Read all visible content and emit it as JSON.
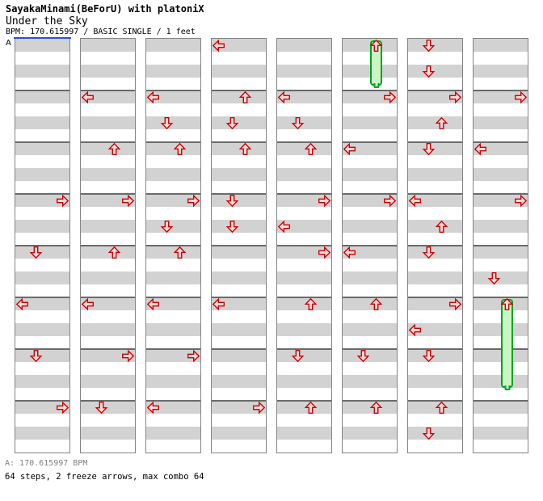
{
  "header": {
    "artist_line": "SayakaMinami(BeForU) with platoniX",
    "song_title": "Under the Sky",
    "chart_info": "BPM: 170.615997 / BASIC SINGLE / 1 feet"
  },
  "footer": {
    "bpm_line": "A: 170.615997 BPM",
    "stats_line": "64 steps, 2 freeze arrows, max combo 64"
  },
  "colors": {
    "arrow_border": "#cc0000",
    "arrow_fill": "#fadada",
    "freeze_fill": "#ccf5c4",
    "freeze_border": "#00a321",
    "band_gray": "#d2d2d2",
    "column_border": "#848484",
    "measure_line": "#6b6b6b",
    "section_line_blue": "#2a52d8",
    "footer_gray": "#808080"
  },
  "chart_data": {
    "type": "ddr-step-chart",
    "section_marker": "A",
    "columns": 8,
    "measures_per_column": 8,
    "beats_per_measure": 4,
    "lanes": [
      "left",
      "down",
      "up",
      "right"
    ],
    "total_steps": 64,
    "freeze_arrows": 2,
    "notes": [
      {
        "column": 1,
        "beat": 12,
        "dir": "right"
      },
      {
        "column": 1,
        "beat": 16,
        "dir": "down"
      },
      {
        "column": 1,
        "beat": 20,
        "dir": "left"
      },
      {
        "column": 1,
        "beat": 24,
        "dir": "down"
      },
      {
        "column": 1,
        "beat": 28,
        "dir": "right"
      },
      {
        "column": 2,
        "beat": 4,
        "dir": "left"
      },
      {
        "column": 2,
        "beat": 8,
        "dir": "up"
      },
      {
        "column": 2,
        "beat": 12,
        "dir": "right"
      },
      {
        "column": 2,
        "beat": 16,
        "dir": "up"
      },
      {
        "column": 2,
        "beat": 20,
        "dir": "left"
      },
      {
        "column": 2,
        "beat": 24,
        "dir": "right"
      },
      {
        "column": 2,
        "beat": 28,
        "dir": "down"
      },
      {
        "column": 3,
        "beat": 4,
        "dir": "left"
      },
      {
        "column": 3,
        "beat": 6,
        "dir": "down"
      },
      {
        "column": 3,
        "beat": 8,
        "dir": "up"
      },
      {
        "column": 3,
        "beat": 12,
        "dir": "right"
      },
      {
        "column": 3,
        "beat": 14,
        "dir": "down"
      },
      {
        "column": 3,
        "beat": 16,
        "dir": "up"
      },
      {
        "column": 3,
        "beat": 20,
        "dir": "left"
      },
      {
        "column": 3,
        "beat": 24,
        "dir": "right"
      },
      {
        "column": 3,
        "beat": 28,
        "dir": "left"
      },
      {
        "column": 4,
        "beat": 0,
        "dir": "left"
      },
      {
        "column": 4,
        "beat": 4,
        "dir": "up"
      },
      {
        "column": 4,
        "beat": 6,
        "dir": "down"
      },
      {
        "column": 4,
        "beat": 8,
        "dir": "up"
      },
      {
        "column": 4,
        "beat": 12,
        "dir": "down"
      },
      {
        "column": 4,
        "beat": 14,
        "dir": "down"
      },
      {
        "column": 4,
        "beat": 20,
        "dir": "left"
      },
      {
        "column": 4,
        "beat": 28,
        "dir": "right"
      },
      {
        "column": 5,
        "beat": 4,
        "dir": "left"
      },
      {
        "column": 5,
        "beat": 6,
        "dir": "down"
      },
      {
        "column": 5,
        "beat": 8,
        "dir": "up"
      },
      {
        "column": 5,
        "beat": 12,
        "dir": "right"
      },
      {
        "column": 5,
        "beat": 14,
        "dir": "left"
      },
      {
        "column": 5,
        "beat": 16,
        "dir": "right"
      },
      {
        "column": 5,
        "beat": 20,
        "dir": "up"
      },
      {
        "column": 5,
        "beat": 24,
        "dir": "down"
      },
      {
        "column": 5,
        "beat": 28,
        "dir": "up"
      },
      {
        "column": 6,
        "beat": 0,
        "dir": "up",
        "hold_until_beat": 3.75
      },
      {
        "column": 6,
        "beat": 4,
        "dir": "right"
      },
      {
        "column": 6,
        "beat": 8,
        "dir": "left"
      },
      {
        "column": 6,
        "beat": 12,
        "dir": "right"
      },
      {
        "column": 6,
        "beat": 16,
        "dir": "left"
      },
      {
        "column": 6,
        "beat": 20,
        "dir": "up"
      },
      {
        "column": 6,
        "beat": 24,
        "dir": "down"
      },
      {
        "column": 6,
        "beat": 28,
        "dir": "up"
      },
      {
        "column": 7,
        "beat": 0,
        "dir": "down"
      },
      {
        "column": 7,
        "beat": 2,
        "dir": "down"
      },
      {
        "column": 7,
        "beat": 4,
        "dir": "right"
      },
      {
        "column": 7,
        "beat": 6,
        "dir": "up"
      },
      {
        "column": 7,
        "beat": 8,
        "dir": "down"
      },
      {
        "column": 7,
        "beat": 12,
        "dir": "left"
      },
      {
        "column": 7,
        "beat": 14,
        "dir": "up"
      },
      {
        "column": 7,
        "beat": 16,
        "dir": "down"
      },
      {
        "column": 7,
        "beat": 20,
        "dir": "right"
      },
      {
        "column": 7,
        "beat": 22,
        "dir": "left"
      },
      {
        "column": 7,
        "beat": 24,
        "dir": "down"
      },
      {
        "column": 7,
        "beat": 28,
        "dir": "up"
      },
      {
        "column": 7,
        "beat": 30,
        "dir": "down"
      },
      {
        "column": 8,
        "beat": 4,
        "dir": "right"
      },
      {
        "column": 8,
        "beat": 8,
        "dir": "left"
      },
      {
        "column": 8,
        "beat": 12,
        "dir": "right"
      },
      {
        "column": 8,
        "beat": 18,
        "dir": "down"
      },
      {
        "column": 8,
        "beat": 20,
        "dir": "up",
        "hold_until_beat": 27.1
      }
    ]
  }
}
